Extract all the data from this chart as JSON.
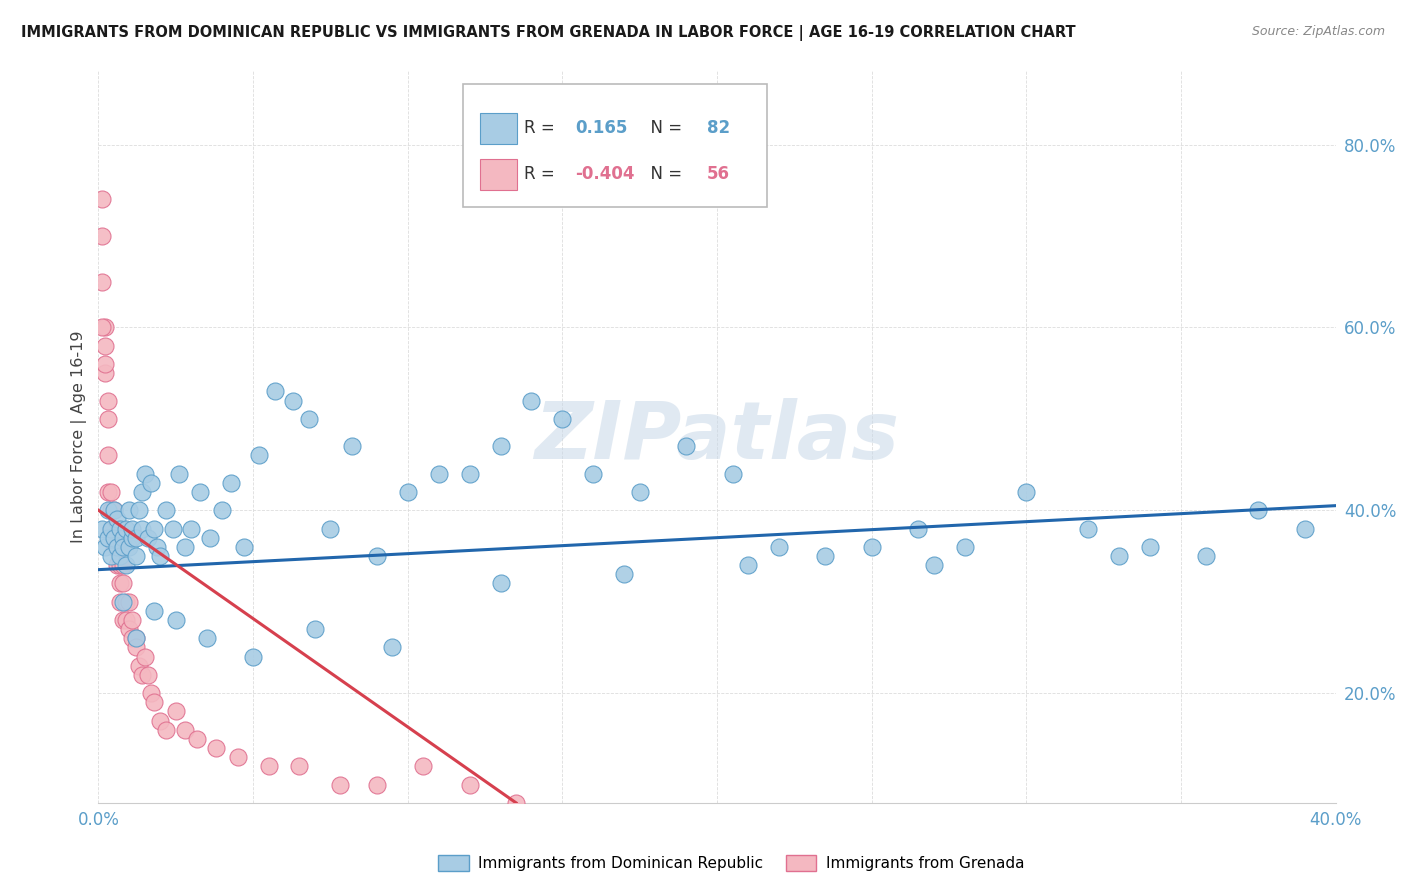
{
  "title": "IMMIGRANTS FROM DOMINICAN REPUBLIC VS IMMIGRANTS FROM GRENADA IN LABOR FORCE | AGE 16-19 CORRELATION CHART",
  "source": "Source: ZipAtlas.com",
  "ylabel": "In Labor Force | Age 16-19",
  "xlim": [
    0.0,
    0.4
  ],
  "ylim": [
    0.08,
    0.88
  ],
  "xticks": [
    0.0,
    0.05,
    0.1,
    0.15,
    0.2,
    0.25,
    0.3,
    0.35,
    0.4
  ],
  "yticks": [
    0.2,
    0.4,
    0.6,
    0.8
  ],
  "ytick_labels": [
    "20.0%",
    "40.0%",
    "60.0%",
    "80.0%"
  ],
  "blue_color": "#a8cce4",
  "blue_edge": "#5b9ec9",
  "pink_color": "#f4b8c1",
  "pink_edge": "#e07090",
  "blue_line_color": "#2166ac",
  "pink_line_color": "#d6404e",
  "R_blue": 0.165,
  "N_blue": 82,
  "R_pink": -0.404,
  "N_pink": 56,
  "watermark": "ZIPatlas",
  "legend_blue": "Immigrants from Dominican Republic",
  "legend_pink": "Immigrants from Grenada",
  "blue_scatter_x": [
    0.001,
    0.002,
    0.003,
    0.003,
    0.004,
    0.004,
    0.005,
    0.005,
    0.006,
    0.006,
    0.007,
    0.007,
    0.008,
    0.008,
    0.009,
    0.009,
    0.01,
    0.01,
    0.011,
    0.011,
    0.012,
    0.012,
    0.013,
    0.014,
    0.014,
    0.015,
    0.016,
    0.017,
    0.018,
    0.019,
    0.02,
    0.022,
    0.024,
    0.026,
    0.028,
    0.03,
    0.033,
    0.036,
    0.04,
    0.043,
    0.047,
    0.052,
    0.057,
    0.063,
    0.068,
    0.075,
    0.082,
    0.09,
    0.1,
    0.11,
    0.12,
    0.13,
    0.14,
    0.15,
    0.16,
    0.175,
    0.19,
    0.205,
    0.22,
    0.235,
    0.25,
    0.265,
    0.28,
    0.3,
    0.32,
    0.34,
    0.358,
    0.375,
    0.39,
    0.008,
    0.012,
    0.018,
    0.025,
    0.035,
    0.05,
    0.07,
    0.095,
    0.13,
    0.17,
    0.21,
    0.27,
    0.33
  ],
  "blue_scatter_y": [
    0.38,
    0.36,
    0.4,
    0.37,
    0.38,
    0.35,
    0.37,
    0.4,
    0.36,
    0.39,
    0.38,
    0.35,
    0.37,
    0.36,
    0.38,
    0.34,
    0.36,
    0.4,
    0.37,
    0.38,
    0.35,
    0.37,
    0.4,
    0.42,
    0.38,
    0.44,
    0.37,
    0.43,
    0.38,
    0.36,
    0.35,
    0.4,
    0.38,
    0.44,
    0.36,
    0.38,
    0.42,
    0.37,
    0.4,
    0.43,
    0.36,
    0.46,
    0.53,
    0.52,
    0.5,
    0.38,
    0.47,
    0.35,
    0.42,
    0.44,
    0.44,
    0.47,
    0.52,
    0.5,
    0.44,
    0.42,
    0.47,
    0.44,
    0.36,
    0.35,
    0.36,
    0.38,
    0.36,
    0.42,
    0.38,
    0.36,
    0.35,
    0.4,
    0.38,
    0.3,
    0.26,
    0.29,
    0.28,
    0.26,
    0.24,
    0.27,
    0.25,
    0.32,
    0.33,
    0.34,
    0.34,
    0.35
  ],
  "pink_scatter_x": [
    0.001,
    0.001,
    0.001,
    0.002,
    0.002,
    0.002,
    0.003,
    0.003,
    0.003,
    0.003,
    0.004,
    0.004,
    0.004,
    0.005,
    0.005,
    0.005,
    0.006,
    0.006,
    0.006,
    0.007,
    0.007,
    0.007,
    0.007,
    0.008,
    0.008,
    0.008,
    0.009,
    0.009,
    0.01,
    0.01,
    0.011,
    0.011,
    0.012,
    0.012,
    0.013,
    0.014,
    0.015,
    0.016,
    0.017,
    0.018,
    0.02,
    0.022,
    0.025,
    0.028,
    0.032,
    0.038,
    0.045,
    0.055,
    0.065,
    0.078,
    0.09,
    0.105,
    0.12,
    0.135,
    0.001,
    0.002
  ],
  "pink_scatter_y": [
    0.74,
    0.7,
    0.65,
    0.6,
    0.58,
    0.55,
    0.52,
    0.5,
    0.46,
    0.42,
    0.4,
    0.42,
    0.38,
    0.4,
    0.38,
    0.36,
    0.37,
    0.36,
    0.34,
    0.36,
    0.34,
    0.32,
    0.3,
    0.34,
    0.32,
    0.28,
    0.3,
    0.28,
    0.3,
    0.27,
    0.28,
    0.26,
    0.26,
    0.25,
    0.23,
    0.22,
    0.24,
    0.22,
    0.2,
    0.19,
    0.17,
    0.16,
    0.18,
    0.16,
    0.15,
    0.14,
    0.13,
    0.12,
    0.12,
    0.1,
    0.1,
    0.12,
    0.1,
    0.08,
    0.6,
    0.56
  ],
  "blue_trend_x": [
    0.0,
    0.4
  ],
  "blue_trend_y": [
    0.335,
    0.405
  ],
  "pink_trend_x": [
    0.0,
    0.135
  ],
  "pink_trend_y": [
    0.4,
    0.08
  ],
  "background_color": "#ffffff",
  "grid_color": "#dddddd",
  "tick_color": "#5b9ec9"
}
